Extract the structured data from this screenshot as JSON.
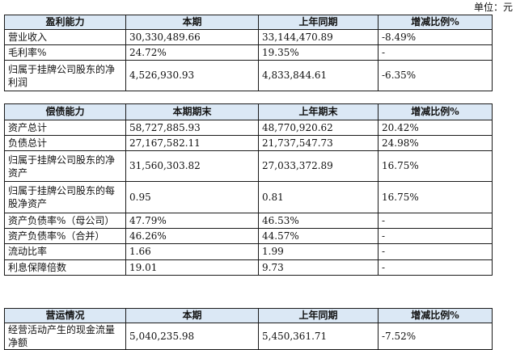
{
  "unit_label": "单位：元",
  "profitability": {
    "header": [
      "盈利能力",
      "本期",
      "上年同期",
      "增减比例%"
    ],
    "rows": [
      [
        "营业收入",
        "30,330,489.66",
        "33,144,470.89",
        "-8.49%"
      ],
      [
        "毛利率%",
        "24.72%",
        "19.35%",
        "-"
      ],
      [
        "归属于挂牌公司股东的净利润",
        "4,526,930.93",
        "4,833,844.61",
        "-6.35%"
      ]
    ]
  },
  "solvency": {
    "header": [
      "偿债能力",
      "本期期末",
      "上年期末",
      "增减比例%"
    ],
    "rows": [
      [
        "资产总计",
        "58,727,885.93",
        "48,770,920.62",
        "20.42%"
      ],
      [
        "负债总计",
        "27,167,582.11",
        "21,737,547.73",
        "24.98%"
      ],
      [
        "归属于挂牌公司股东的净资产",
        "31,560,303.82",
        "27,033,372.89",
        "16.75%"
      ],
      [
        "归属于挂牌公司股东的每股净资产",
        "0.95",
        "0.81",
        "16.75%"
      ],
      [
        "资产负债率%（母公司）",
        "47.79%",
        "46.53%",
        "-"
      ],
      [
        "资产负债率%（合并）",
        "46.26%",
        "44.57%",
        "-"
      ],
      [
        "流动比率",
        "1.66",
        "1.99",
        "-"
      ],
      [
        "利息保障倍数",
        "19.01",
        "9.73",
        "-"
      ]
    ]
  },
  "operations": {
    "header": [
      "营运情况",
      "本期",
      "上年同期",
      "增减比例%"
    ],
    "rows": [
      [
        "经营活动产生的现金流量净额",
        "5,040,235.98",
        "5,450,361.71",
        "-7.52%"
      ]
    ]
  }
}
